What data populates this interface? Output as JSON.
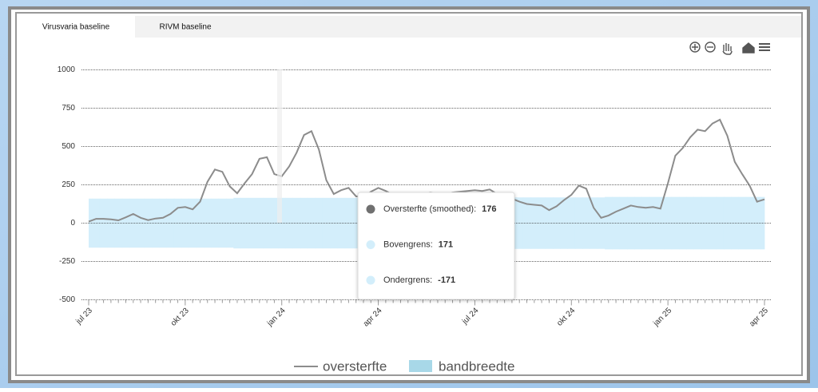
{
  "tabs": [
    "Virusvaria baseline",
    "RIVM baseline"
  ],
  "chart_data": {
    "type": "line",
    "categories": [
      "jul 23",
      null,
      null,
      null,
      null,
      null,
      null,
      null,
      null,
      null,
      null,
      null,
      null,
      "okt 23",
      null,
      null,
      null,
      null,
      null,
      null,
      null,
      null,
      null,
      null,
      null,
      null,
      "jan 24",
      null,
      null,
      null,
      null,
      null,
      null,
      null,
      null,
      null,
      null,
      null,
      null,
      "apr 24",
      null,
      null,
      null,
      null,
      null,
      null,
      null,
      null,
      null,
      null,
      null,
      null,
      "jul 24",
      null,
      null,
      null,
      null,
      null,
      null,
      null,
      null,
      null,
      null,
      null,
      null,
      "okt 24",
      null,
      null,
      null,
      null,
      null,
      null,
      null,
      null,
      null,
      null,
      null,
      null,
      "jan 25",
      null,
      null,
      null,
      null,
      null,
      null,
      null,
      null,
      null,
      null,
      null,
      null,
      "apr 25"
    ],
    "series": [
      {
        "name": "oversterfte",
        "color": "#8c8c8c",
        "values": [
          10,
          28,
          28,
          25,
          18,
          38,
          60,
          35,
          20,
          30,
          35,
          60,
          100,
          105,
          90,
          140,
          270,
          350,
          335,
          240,
          195,
          260,
          320,
          420,
          430,
          320,
          305,
          370,
          460,
          575,
          600,
          480,
          280,
          190,
          215,
          230,
          175,
          170,
          205,
          230,
          210,
          185,
          180,
          175,
          180,
          190,
          200,
          195,
          190,
          200,
          205,
          210,
          215,
          210,
          220,
          190,
          170,
          160,
          140,
          125,
          120,
          115,
          85,
          110,
          150,
          185,
          245,
          225,
          100,
          35,
          50,
          75,
          95,
          115,
          105,
          100,
          105,
          95,
          260,
          440,
          490,
          560,
          610,
          600,
          650,
          675,
          570,
          400,
          320,
          245,
          140,
          155
        ]
      }
    ],
    "band": {
      "name": "bandbreedte",
      "color": "#d3eefb",
      "upper": [
        160,
        160,
        160,
        160,
        160,
        160,
        160,
        160,
        160,
        160,
        160,
        160,
        160,
        160,
        160,
        160,
        160,
        160,
        160,
        160,
        165,
        165,
        165,
        165,
        165,
        165,
        165,
        165,
        165,
        165,
        165,
        165,
        165,
        165,
        165,
        165,
        165,
        165,
        165,
        165,
        165,
        165,
        165,
        165,
        165,
        165,
        165,
        165,
        165,
        165,
        168,
        168,
        168,
        168,
        168,
        168,
        168,
        168,
        168,
        168,
        168,
        168,
        168,
        168,
        168,
        168,
        168,
        168,
        168,
        168,
        171,
        171,
        171,
        171,
        171,
        171,
        171,
        171,
        171,
        171,
        171,
        171,
        171,
        171,
        171,
        171,
        171,
        171,
        171,
        171,
        171,
        171
      ],
      "lower": [
        -160,
        -160,
        -160,
        -160,
        -160,
        -160,
        -160,
        -160,
        -160,
        -160,
        -160,
        -160,
        -160,
        -160,
        -160,
        -160,
        -160,
        -160,
        -160,
        -160,
        -165,
        -165,
        -165,
        -165,
        -165,
        -165,
        -165,
        -165,
        -165,
        -165,
        -165,
        -165,
        -165,
        -165,
        -165,
        -165,
        -165,
        -165,
        -165,
        -165,
        -165,
        -165,
        -165,
        -165,
        -165,
        -165,
        -165,
        -165,
        -165,
        -165,
        -168,
        -168,
        -168,
        -168,
        -168,
        -168,
        -168,
        -168,
        -168,
        -168,
        -168,
        -168,
        -168,
        -168,
        -168,
        -168,
        -168,
        -168,
        -168,
        -168,
        -171,
        -171,
        -171,
        -171,
        -171,
        -171,
        -171,
        -171,
        -171,
        -171,
        -171,
        -171,
        -171,
        -171,
        -171,
        -171,
        -171,
        -171,
        -171,
        -171,
        -171,
        -171
      ],
      "legend_color": "#a8d8e8"
    },
    "ylim": [
      -500,
      1000
    ],
    "yticks": [
      1000,
      750,
      500,
      250,
      0,
      -250,
      -500
    ],
    "grid": true,
    "tooltip": [
      {
        "label": "Oversterfte (smoothed):",
        "value": 176,
        "color": "#707070"
      },
      {
        "label": "Bovengrens:",
        "value": 171,
        "color": "#d3eefb"
      },
      {
        "label": "Ondergrens:",
        "value": -171,
        "color": "#d3eefb"
      }
    ]
  }
}
